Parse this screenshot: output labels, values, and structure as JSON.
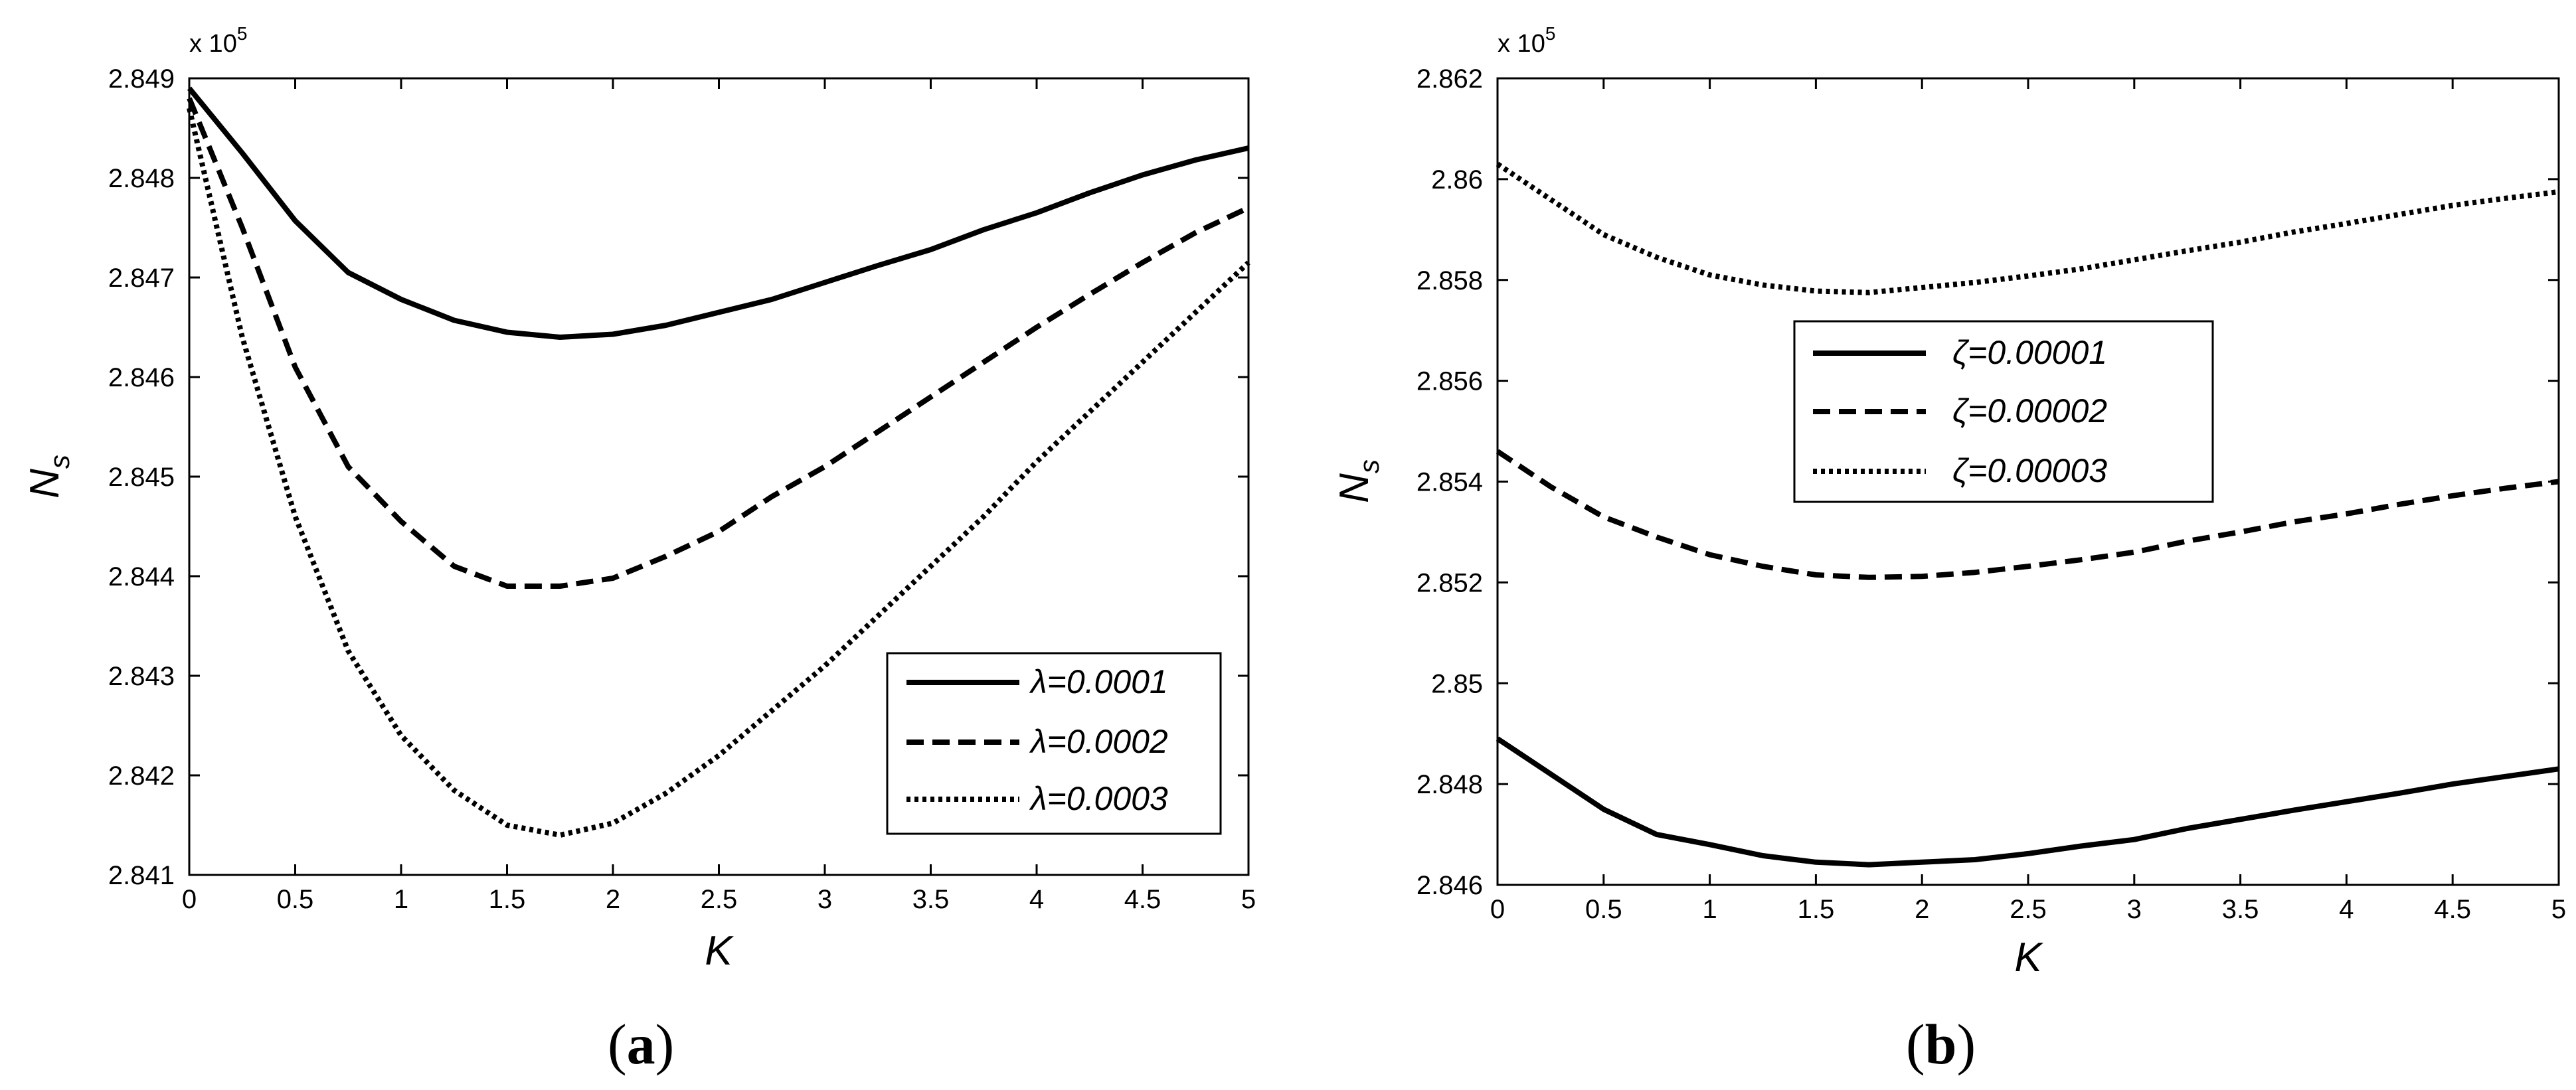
{
  "chart_data": [
    {
      "type": "line",
      "panel_label": "a",
      "xlabel": "K",
      "ylabel": "N",
      "ylabel_sub": "s",
      "y_multiplier": "x 10",
      "y_multiplier_exp": "5",
      "xlim": [
        0,
        5
      ],
      "ylim": [
        2.841,
        2.849
      ],
      "x_ticks": [
        0,
        0.5,
        1,
        1.5,
        2,
        2.5,
        3,
        3.5,
        4,
        4.5,
        5
      ],
      "x_tick_labels": [
        "0",
        "0.5",
        "1",
        "1.5",
        "2",
        "2.5",
        "3",
        "3.5",
        "4",
        "4.5",
        "5"
      ],
      "y_ticks": [
        2.841,
        2.842,
        2.843,
        2.844,
        2.845,
        2.846,
        2.847,
        2.848,
        2.849
      ],
      "y_tick_labels": [
        "2.841",
        "2.842",
        "2.843",
        "2.844",
        "2.845",
        "2.846",
        "2.847",
        "2.848",
        "2.849"
      ],
      "grid": false,
      "legend_position": "bottom-right",
      "x": [
        0,
        0.25,
        0.5,
        0.75,
        1,
        1.25,
        1.5,
        1.75,
        2,
        2.25,
        2.5,
        2.75,
        3,
        3.25,
        3.5,
        3.75,
        4,
        4.25,
        4.5,
        4.75,
        5
      ],
      "series": [
        {
          "name": "λ=0.0001",
          "dash": "solid",
          "values": [
            2.8489,
            2.84825,
            2.84757,
            2.84705,
            2.84678,
            2.84657,
            2.84645,
            2.8464,
            2.84643,
            2.84652,
            2.84665,
            2.84678,
            2.84695,
            2.84712,
            2.84728,
            2.84748,
            2.84765,
            2.84785,
            2.84803,
            2.84818,
            2.8483
          ]
        },
        {
          "name": "λ=0.0002",
          "dash": "dashed",
          "values": [
            2.8488,
            2.8475,
            2.8461,
            2.8451,
            2.84455,
            2.8441,
            2.8439,
            2.8439,
            2.84398,
            2.8442,
            2.84445,
            2.8448,
            2.8451,
            2.84545,
            2.8458,
            2.84615,
            2.8465,
            2.84683,
            2.84715,
            2.84745,
            2.8477
          ]
        },
        {
          "name": "λ=0.0003",
          "dash": "dotted",
          "values": [
            2.8487,
            2.8464,
            2.8446,
            2.84325,
            2.8424,
            2.84185,
            2.8415,
            2.8414,
            2.84152,
            2.84182,
            2.8422,
            2.84265,
            2.8431,
            2.8436,
            2.8441,
            2.8446,
            2.84515,
            2.84565,
            2.84615,
            2.84665,
            2.84715
          ]
        }
      ]
    },
    {
      "type": "line",
      "panel_label": "b",
      "xlabel": "K",
      "ylabel": "N",
      "ylabel_sub": "s",
      "y_multiplier": "x 10",
      "y_multiplier_exp": "5",
      "xlim": [
        0,
        5
      ],
      "ylim": [
        2.846,
        2.862
      ],
      "x_ticks": [
        0,
        0.5,
        1,
        1.5,
        2,
        2.5,
        3,
        3.5,
        4,
        4.5,
        5
      ],
      "x_tick_labels": [
        "0",
        "0.5",
        "1",
        "1.5",
        "2",
        "2.5",
        "3",
        "3.5",
        "4",
        "4.5",
        "5"
      ],
      "y_ticks": [
        2.846,
        2.848,
        2.85,
        2.852,
        2.854,
        2.856,
        2.858,
        2.86,
        2.862
      ],
      "y_tick_labels": [
        "2.846",
        "2.848",
        "2.85",
        "2.852",
        "2.854",
        "2.856",
        "2.858",
        "2.86",
        "2.862"
      ],
      "grid": false,
      "legend_position": "center-left",
      "x": [
        0,
        0.25,
        0.5,
        0.75,
        1,
        1.25,
        1.5,
        1.75,
        2,
        2.25,
        2.5,
        2.75,
        3,
        3.25,
        3.5,
        3.75,
        4,
        4.25,
        4.5,
        4.75,
        5
      ],
      "series": [
        {
          "name": "ζ=0.00001",
          "dash": "solid",
          "values": [
            2.8489,
            2.8482,
            2.8475,
            2.847,
            2.8468,
            2.84658,
            2.84645,
            2.8464,
            2.84645,
            2.8465,
            2.84662,
            2.84677,
            2.8469,
            2.84712,
            2.8473,
            2.84748,
            2.84765,
            2.84782,
            2.848,
            2.84815,
            2.8483
          ]
        },
        {
          "name": "ζ=0.00002",
          "dash": "dashed",
          "values": [
            2.8546,
            2.8539,
            2.8533,
            2.8529,
            2.85255,
            2.85232,
            2.85215,
            2.8521,
            2.85212,
            2.8522,
            2.85232,
            2.85245,
            2.8526,
            2.85282,
            2.853,
            2.8532,
            2.85336,
            2.85355,
            2.85372,
            2.85387,
            2.854
          ]
        },
        {
          "name": "ζ=0.00003",
          "dash": "dotted",
          "values": [
            2.8603,
            2.8596,
            2.8589,
            2.85845,
            2.8581,
            2.8579,
            2.85778,
            2.85775,
            2.85785,
            2.85795,
            2.85808,
            2.85822,
            2.8584,
            2.85858,
            2.85875,
            2.85895,
            2.85912,
            2.8593,
            2.85948,
            2.85962,
            2.85975
          ]
        }
      ]
    }
  ]
}
